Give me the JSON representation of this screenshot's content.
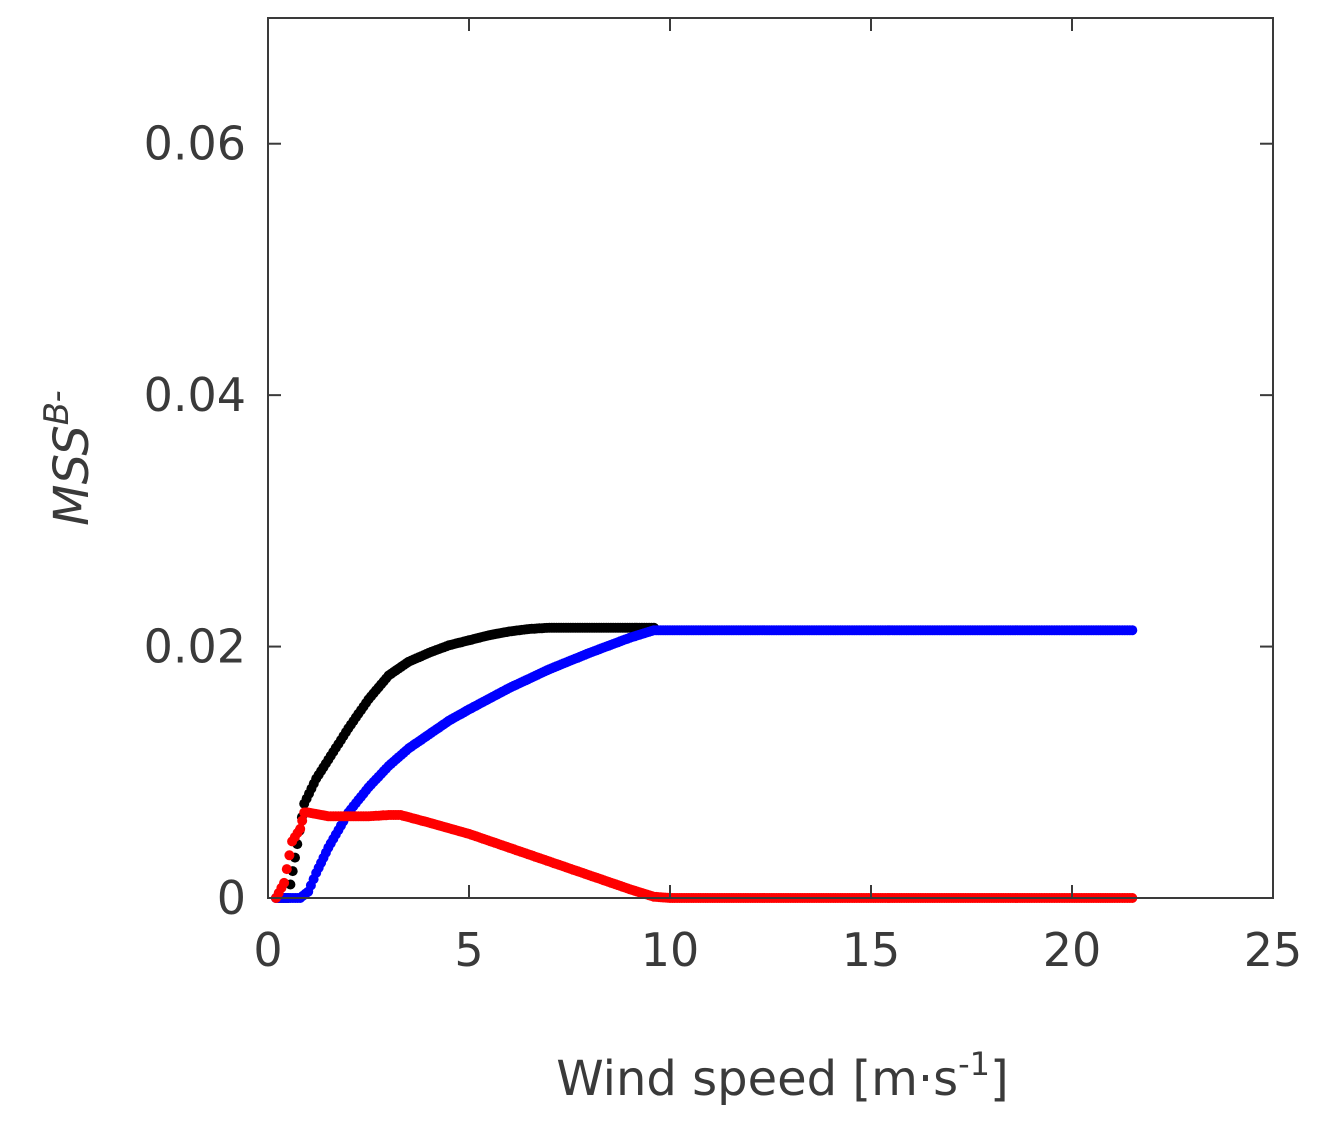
{
  "chart_data": {
    "type": "scatter",
    "title": "",
    "xlabel": {
      "main": "Wind speed [m·s",
      "superscript": "-1",
      "close": "]"
    },
    "ylabel": {
      "main": "MSS",
      "superscript": "B-"
    },
    "xlim": [
      0,
      25
    ],
    "ylim": [
      0,
      0.07
    ],
    "xticks": [
      0,
      5,
      10,
      15,
      20,
      25
    ],
    "xtick_labels": [
      "0",
      "5",
      "10",
      "15",
      "20",
      "25"
    ],
    "yticks": [
      0,
      0.02,
      0.04,
      0.06
    ],
    "ytick_labels": [
      "0",
      "0.02",
      "0.04",
      "0.06"
    ],
    "grid": false,
    "legend": "none",
    "series": [
      {
        "color": "#000000",
        "points": [
          [
            0.2,
            0.0
          ],
          [
            0.5,
            0.0
          ],
          [
            0.9,
            0.0075
          ],
          [
            1.2,
            0.0095
          ],
          [
            1.5,
            0.011
          ],
          [
            2.0,
            0.0135
          ],
          [
            2.5,
            0.0158
          ],
          [
            3.0,
            0.0177
          ],
          [
            3.5,
            0.0188
          ],
          [
            4.0,
            0.0195
          ],
          [
            4.5,
            0.0201
          ],
          [
            5.0,
            0.0205
          ],
          [
            5.5,
            0.0209
          ],
          [
            6.0,
            0.0212
          ],
          [
            6.5,
            0.0214
          ],
          [
            7.0,
            0.0215
          ],
          [
            8.0,
            0.0215
          ],
          [
            9.0,
            0.0215
          ],
          [
            9.6,
            0.0215
          ]
        ]
      },
      {
        "color": "#0000ff",
        "points": [
          [
            0.2,
            0.0
          ],
          [
            0.5,
            0.0
          ],
          [
            0.8,
            0.0
          ],
          [
            1.0,
            0.0005
          ],
          [
            1.2,
            0.002
          ],
          [
            1.5,
            0.004
          ],
          [
            2.0,
            0.0068
          ],
          [
            2.5,
            0.0088
          ],
          [
            3.0,
            0.0105
          ],
          [
            3.5,
            0.0119
          ],
          [
            4.0,
            0.013
          ],
          [
            4.5,
            0.0141
          ],
          [
            5.0,
            0.015
          ],
          [
            6.0,
            0.0167
          ],
          [
            7.0,
            0.0182
          ],
          [
            8.0,
            0.0195
          ],
          [
            9.0,
            0.0207
          ],
          [
            9.6,
            0.0213
          ],
          [
            10.0,
            0.0213
          ],
          [
            11.0,
            0.0213
          ],
          [
            12.0,
            0.0213
          ],
          [
            13.0,
            0.0213
          ],
          [
            14.0,
            0.0213
          ],
          [
            15.0,
            0.0213
          ],
          [
            16.0,
            0.0213
          ],
          [
            17.0,
            0.0213
          ],
          [
            18.0,
            0.0213
          ],
          [
            19.0,
            0.0213
          ],
          [
            19.5,
            0.0213
          ],
          [
            20.0,
            0.0213
          ],
          [
            20.6,
            0.0213
          ],
          [
            21.0,
            0.0213
          ],
          [
            21.5,
            0.0213
          ]
        ]
      },
      {
        "color": "#ff0000",
        "points": [
          [
            0.2,
            0.0
          ],
          [
            0.4,
            0.0012
          ],
          [
            0.6,
            0.0045
          ],
          [
            0.8,
            0.0055
          ],
          [
            0.9,
            0.0068
          ],
          [
            1.0,
            0.0068
          ],
          [
            1.5,
            0.0065
          ],
          [
            2.0,
            0.0065
          ],
          [
            2.5,
            0.0065
          ],
          [
            3.0,
            0.0066
          ],
          [
            3.3,
            0.0066
          ],
          [
            4.0,
            0.006
          ],
          [
            5.0,
            0.0051
          ],
          [
            6.0,
            0.004
          ],
          [
            7.0,
            0.0029
          ],
          [
            8.0,
            0.0018
          ],
          [
            9.0,
            0.0007
          ],
          [
            9.6,
            0.0001
          ],
          [
            10.0,
            0.0
          ],
          [
            11.0,
            0.0
          ],
          [
            12.0,
            0.0
          ],
          [
            13.0,
            0.0
          ],
          [
            14.0,
            0.0
          ],
          [
            15.0,
            0.0
          ],
          [
            16.0,
            0.0
          ],
          [
            17.0,
            0.0
          ],
          [
            18.0,
            0.0
          ],
          [
            19.0,
            0.0
          ],
          [
            19.5,
            0.0
          ],
          [
            20.0,
            0.0
          ],
          [
            20.6,
            0.0
          ],
          [
            21.0,
            0.0
          ],
          [
            21.5,
            0.0
          ]
        ]
      }
    ]
  }
}
